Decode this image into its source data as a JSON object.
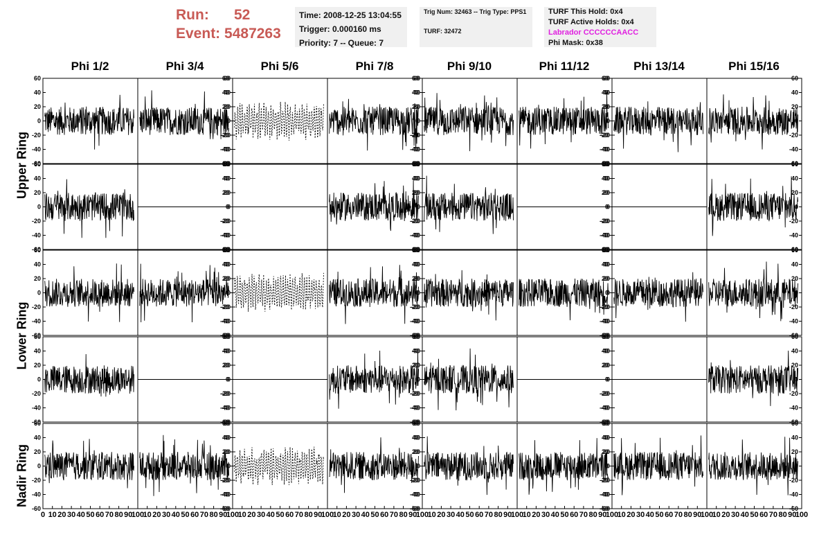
{
  "header": {
    "run_label": "Run:",
    "run_value": "52",
    "event_label": "Event:",
    "event_value": "5487263",
    "time": "Time: 2008-12-25 13:04:55",
    "trigger": "Trigger: 0.000160 ms",
    "priority": "Priority: 7 -- Queue: 7",
    "trig_num": "Trig Num: 32463 -- Trig Type: PPS1",
    "turf_num": "TURF: 32472",
    "turf_this_hold": "TURF This Hold: 0x4",
    "turf_active_holds": "TURF Active Holds: 0x4",
    "labrador": "Labrador CCCCCCAACC",
    "phi_mask": "Phi Mask: 0x38"
  },
  "colors": {
    "header_red": "#c85a55",
    "labrador_magenta": "#e020e0",
    "box_bg": "#f0f0f0"
  },
  "chart_data": {
    "type": "line",
    "columns": [
      "Phi 1/2",
      "Phi 3/4",
      "Phi 5/6",
      "Phi 7/8",
      "Phi 9/10",
      "Phi 11/12",
      "Phi 13/14",
      "Phi 15/16"
    ],
    "ring_labels": [
      "Upper Ring",
      "Lower Ring",
      "Nadir Ring"
    ],
    "ylim": [
      -60,
      60
    ],
    "xlim": [
      0,
      100
    ],
    "y_ticks": [
      "60",
      "40",
      "20",
      "0",
      "-20",
      "-40",
      "-60"
    ],
    "x_ticks": [
      "0",
      "10",
      "20",
      "30",
      "40",
      "50",
      "60",
      "70",
      "80",
      "90",
      "100"
    ],
    "rows": [
      [
        "noise",
        "noise",
        "dashed",
        "noise",
        "noise",
        "noise",
        "noise",
        "noise"
      ],
      [
        "noise",
        "flat",
        "flat",
        "noise",
        "noise",
        "flat",
        "flat",
        "noise"
      ],
      [
        "noise",
        "noise",
        "dashed",
        "noise",
        "noise",
        "noise",
        "noise",
        "noise"
      ],
      [
        "noise",
        "flat",
        "flat",
        "noise",
        "noise",
        "flat",
        "flat",
        "noise"
      ],
      [
        "noise",
        "noise",
        "dashed",
        "noise",
        "noise",
        "noise",
        "noise",
        "noise"
      ]
    ],
    "amplitude": 20
  }
}
